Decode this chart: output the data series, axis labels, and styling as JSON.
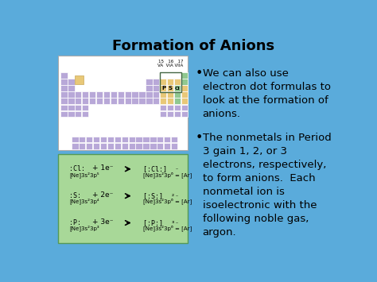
{
  "title": "Formation of Anions",
  "title_fontsize": 13,
  "title_fontweight": "bold",
  "bg_color": "#5aabdb",
  "purple_color": "#b8a8d8",
  "orange_color": "#e8c878",
  "green_highlight": "#90c890",
  "green_box_top": "#a8d898",
  "green_box_bottom": "#78b868",
  "white": "#ffffff",
  "bullet1": "We can also use\nelectron dot formulas to\nlook at the formation of\nanions.",
  "bullet2": "The nonmetals in Period\n3 gain 1, 2, or 3\nelectrons, respectively,\nto form anions.  Each\nnonmetal ion is\nisoelectronic with the\nfollowing noble gas,\nargon.",
  "bullet_fontsize": 9.5,
  "reactions": [
    [
      ":Cl:",
      "[Ne]3s²3p⁵",
      "+ 1e⁻",
      "[:Cl:]  ⁻",
      "[Ne]3s²3p⁶ = [Ar]"
    ],
    [
      ":S:",
      "[Ne]3s²3p⁴",
      "+ 2e⁻",
      "[:S:]  ²⁻",
      "[Ne]3s²3p⁶ = [Ar]"
    ],
    [
      ":P:",
      "[Ne]3s²3p³",
      "+ 3e⁻",
      "[:P:]  ³⁻",
      "[Ne]3s²3p⁶ = [Ar]"
    ]
  ]
}
